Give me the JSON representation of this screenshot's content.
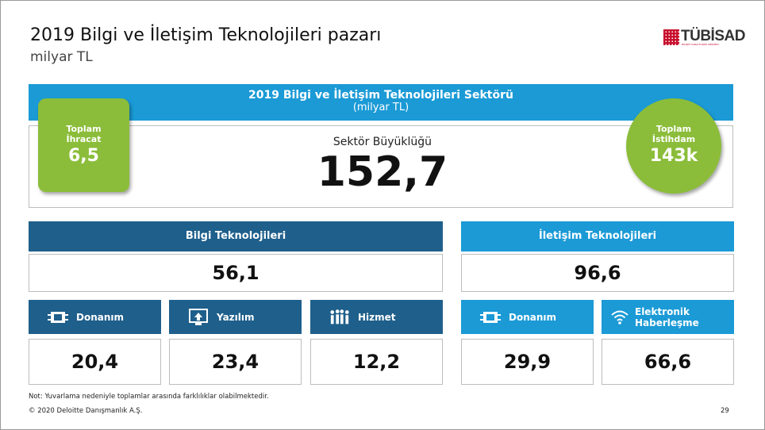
{
  "slide": {
    "title": "2019 Bilgi ve İletişim Teknolojileri pazarı",
    "subtitle": "milyar TL",
    "logo_text": "TÜBİSAD",
    "logo_subtext": "BİLİŞİM SANAYİCİLERİ DERNEĞİ"
  },
  "banner": {
    "title": "2019 Bilgi ve İletişim Teknolojileri Sektörü",
    "unit": "(milyar TL)"
  },
  "sector": {
    "label": "Sektör Büyüklüğü",
    "value": "152,7"
  },
  "export": {
    "label": "Toplam\nİhracat",
    "value": "6,5"
  },
  "employment": {
    "label": "Toplam\nİstihdam",
    "value": "143k"
  },
  "it": {
    "label": "Bilgi Teknolojileri",
    "value": "56,1",
    "items": [
      {
        "label": "Donanım",
        "value": "20,4",
        "icon": "hardware-icon"
      },
      {
        "label": "Yazılım",
        "value": "23,4",
        "icon": "software-icon"
      },
      {
        "label": "Hizmet",
        "value": "12,2",
        "icon": "people-icon"
      }
    ]
  },
  "ct": {
    "label": "İletişim Teknolojileri",
    "value": "96,6",
    "items": [
      {
        "label": "Donanım",
        "value": "29,9",
        "icon": "hardware-icon"
      },
      {
        "label": "Elektronik\nHaberleşme",
        "value": "66,6",
        "icon": "wifi-icon"
      }
    ]
  },
  "footer": {
    "note": "Not: Yuvarlama nedeniyle toplamlar arasında farklılıklar olabilmektedir.",
    "copyright": "© 2020 Deloitte Danışmanlık A.Ş.",
    "page": "29"
  },
  "colors": {
    "dark_blue": "#1f5f8b",
    "light_blue": "#1b9ad6",
    "green": "#8bbd3a"
  }
}
